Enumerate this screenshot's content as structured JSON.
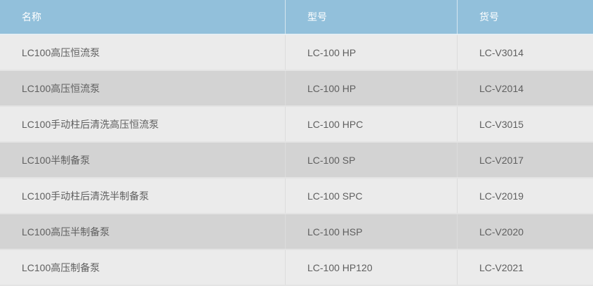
{
  "table": {
    "headers": [
      "名称",
      "型号",
      "货号"
    ],
    "rows": [
      [
        "LC100高压恒流泵",
        "LC-100 HP",
        "LC-V3014"
      ],
      [
        "LC100高压恒流泵",
        "LC-100 HP",
        "LC-V2014"
      ],
      [
        "LC100手动柱后清洗高压恒流泵",
        "LC-100 HPC",
        "LC-V3015"
      ],
      [
        "LC100半制备泵",
        "LC-100 SP",
        "LC-V2017"
      ],
      [
        "LC100手动柱后清洗半制备泵",
        "LC-100 SPC",
        "LC-V2019"
      ],
      [
        "LC100高压半制备泵",
        "LC-100 HSP",
        "LC-V2020"
      ],
      [
        "LC100高压制备泵",
        "LC-100 HP120",
        "LC-V2021"
      ]
    ]
  },
  "colors": {
    "header_bg": "#92c0db",
    "row_odd": "#ebebeb",
    "row_even": "#d3d3d3"
  }
}
